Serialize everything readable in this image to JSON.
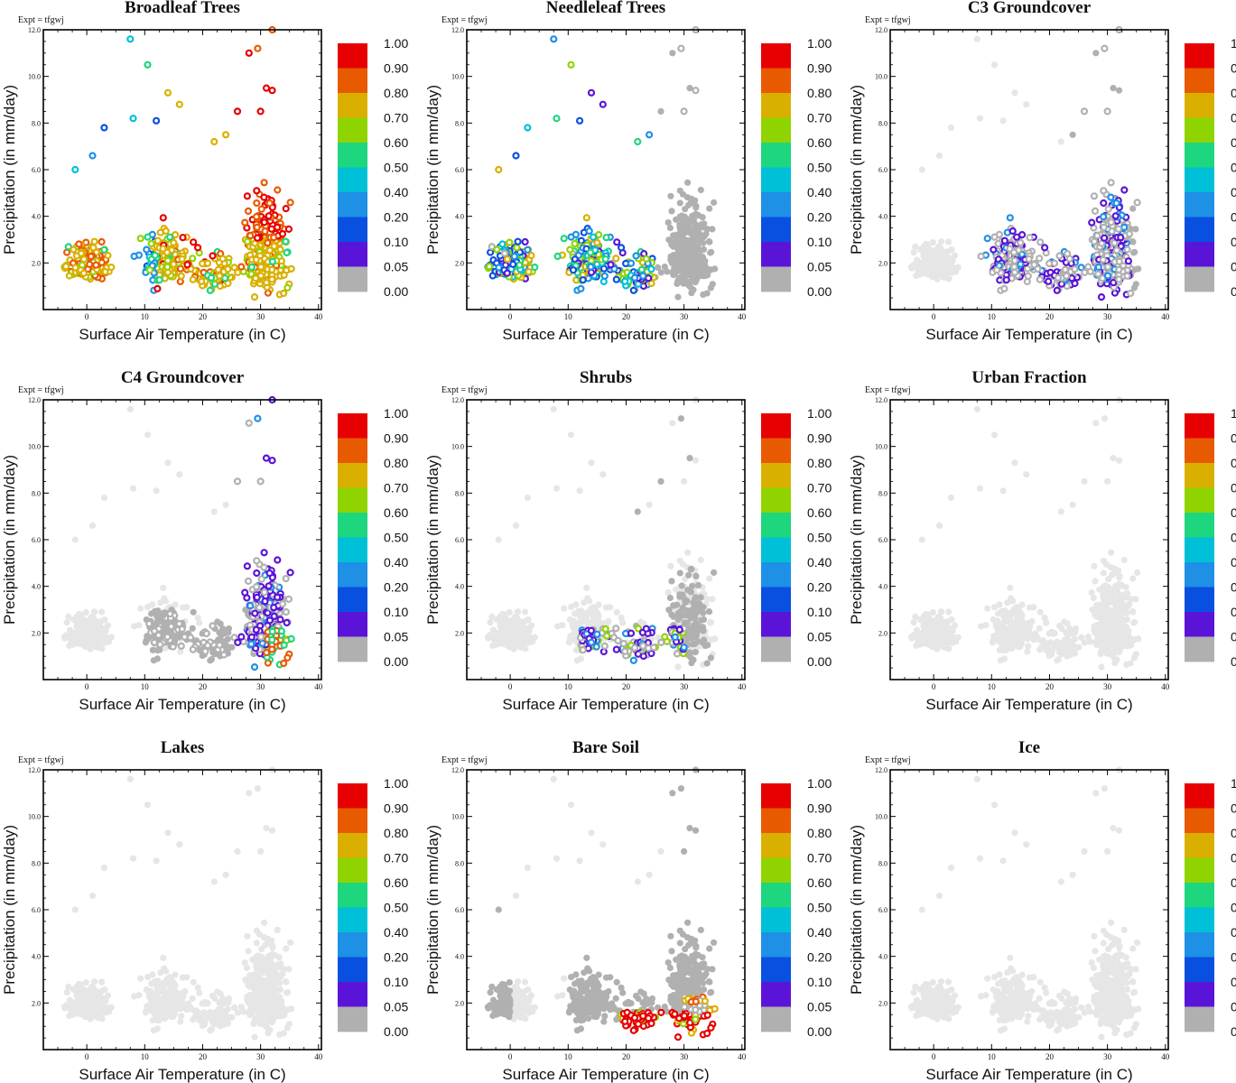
{
  "figure": {
    "xlabel": "Surface Air Temperature (in C)",
    "ylabel": "Precipitation (in mm/day)",
    "expt_label": "Expt = tfgwj",
    "xlim": [
      -7.5,
      40.5
    ],
    "ylim": [
      0,
      12.0
    ],
    "xticks": [
      0,
      10,
      20,
      30,
      40
    ],
    "yticks": [
      2.0,
      4.0,
      6.0,
      8.0,
      10.0,
      12.0
    ],
    "ytick_labels": [
      "2.0",
      "4.0",
      "6.0",
      "8.0",
      "10.0",
      "12.0"
    ]
  },
  "colorbar": {
    "levels": [
      "1.00",
      "0.90",
      "0.80",
      "0.70",
      "0.60",
      "0.50",
      "0.40",
      "0.20",
      "0.10",
      "0.05",
      "0.00"
    ],
    "colors": [
      "#e60000",
      "#e85a00",
      "#d9b000",
      "#8fd400",
      "#1ed67e",
      "#00c0d8",
      "#1e90e6",
      "#0a50e0",
      "#5a14d8",
      "#b0b0b0"
    ]
  },
  "colors": {
    "background_points": "#e6e6e6",
    "zero_points": "#b0b0b0",
    "frame": "#000000"
  },
  "chart_data": [
    {
      "type": "scatter",
      "title": "Broadleaf Trees",
      "pattern": "broadleaf",
      "description_values": "fraction 0.8-0.95 dominant in clusters at 0C and 30C"
    },
    {
      "type": "scatter",
      "title": "Needleleaf Trees",
      "pattern": "needleleaf",
      "description_values": "mixed fractions below 25C, zero above"
    },
    {
      "type": "scatter",
      "title": "C3 Groundcover",
      "pattern": "c3",
      "description_values": "low fractions 0.05-0.20 between 10C and 35C"
    },
    {
      "type": "scatter",
      "title": "C4 Groundcover",
      "pattern": "c4",
      "description_values": "fractions 0.05-0.9 between 25C and 38C"
    },
    {
      "type": "scatter",
      "title": "Shrubs",
      "pattern": "shrubs",
      "description_values": "low fractions near 15-30C, precip 0.8-2.2"
    },
    {
      "type": "scatter",
      "title": "Urban Fraction",
      "pattern": "none",
      "description_values": "all zero"
    },
    {
      "type": "scatter",
      "title": "Lakes",
      "pattern": "none",
      "description_values": "all zero"
    },
    {
      "type": "scatter",
      "title": "Bare Soil",
      "pattern": "baresoil",
      "description_values": "high fractions 0.9+ at 20-40C low precip"
    },
    {
      "type": "scatter",
      "title": "Ice",
      "pattern": "none",
      "description_values": "all zero"
    }
  ]
}
